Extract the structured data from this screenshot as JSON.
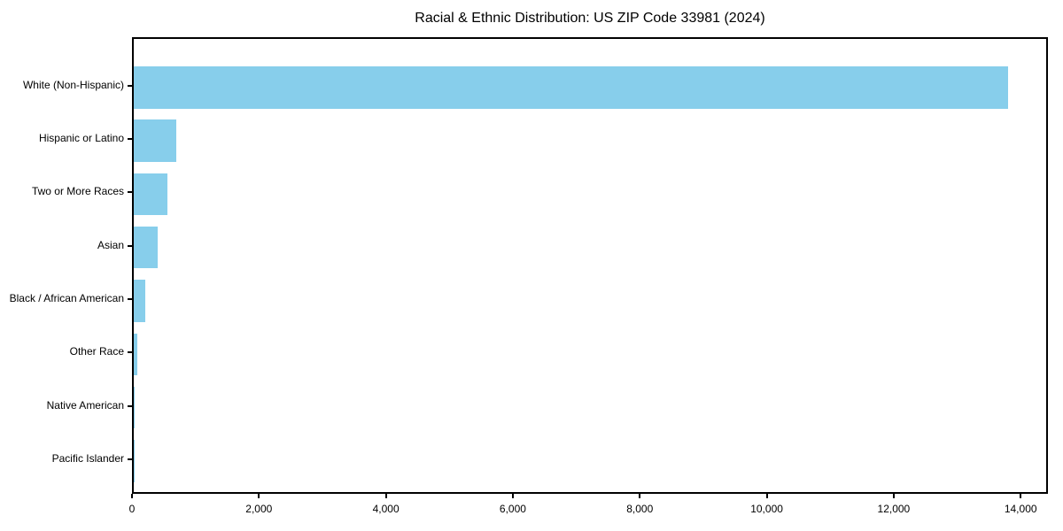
{
  "header": {
    "title": "Racial & Ethnic Distribution: US ZIP Code 33981 (2024)"
  },
  "chart_data": {
    "type": "bar",
    "orientation": "horizontal",
    "title": "Racial & Ethnic Distribution: US ZIP Code 33981 (2024)",
    "xlabel": "",
    "ylabel": "",
    "categories": [
      "White (Non-Hispanic)",
      "Hispanic or Latino",
      "Two or More Races",
      "Asian",
      "Black / African American",
      "Other Race",
      "Native American",
      "Pacific Islander"
    ],
    "values": [
      13780,
      665,
      525,
      373,
      185,
      60,
      15,
      8
    ],
    "xlim": [
      0,
      14430
    ],
    "x_ticks": [
      0,
      2000,
      4000,
      6000,
      8000,
      10000,
      12000,
      14000
    ],
    "x_tick_labels": [
      "0",
      "2,000",
      "4,000",
      "6,000",
      "8,000",
      "10,000",
      "12,000",
      "14,000"
    ],
    "grid": false,
    "legend": null
  },
  "colors": {
    "bar": "#87CEEB",
    "axis": "#000000",
    "text": "#000000",
    "background": "#FFFFFF"
  }
}
